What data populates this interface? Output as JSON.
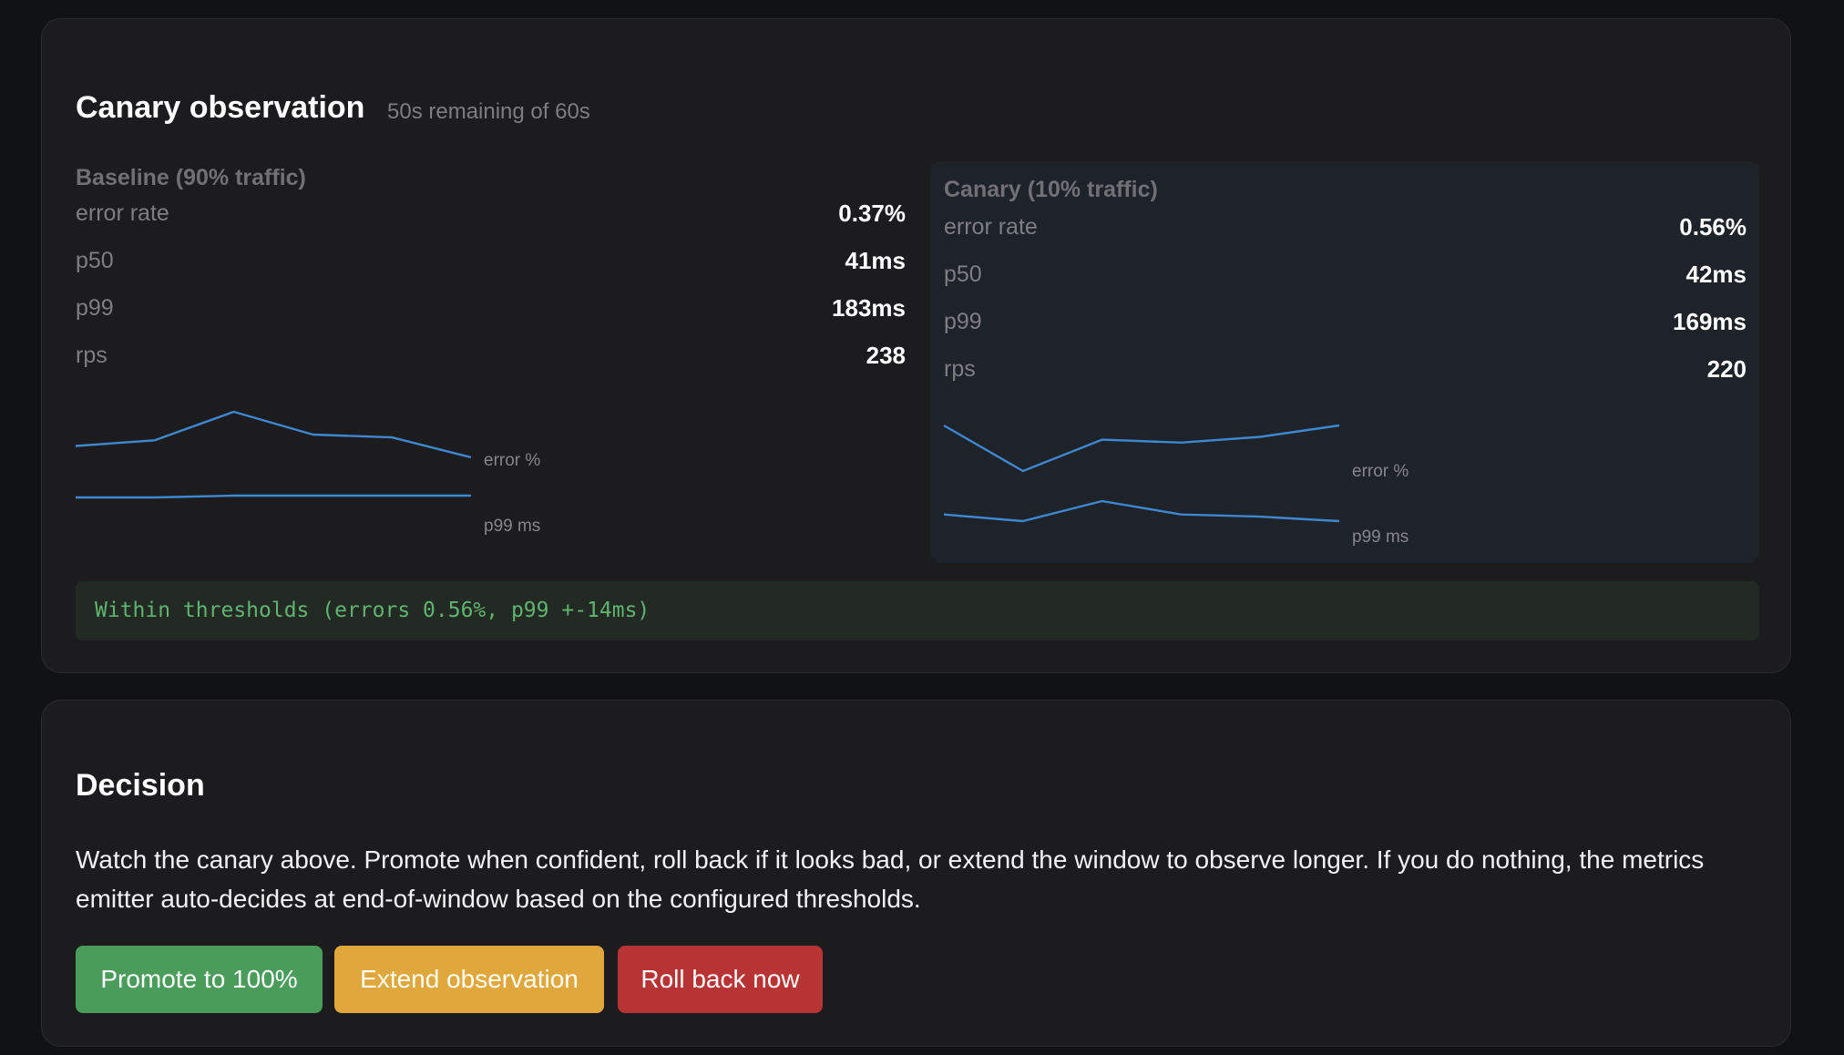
{
  "observation": {
    "title": "Canary observation",
    "subtitle": "50s remaining of 60s",
    "baseline": {
      "title": "Baseline (90% traffic)",
      "metrics": [
        {
          "label": "error rate",
          "value": "0.37%"
        },
        {
          "label": "p50",
          "value": "41ms"
        },
        {
          "label": "p99",
          "value": "183ms"
        },
        {
          "label": "rps",
          "value": "238"
        }
      ],
      "sparklines": {
        "error_label": "error %",
        "p99_label": "p99 ms",
        "error_series": [
          0.35,
          0.36,
          0.41,
          0.37,
          0.365,
          0.33
        ],
        "p99_series": [
          182,
          182,
          183,
          183,
          183,
          183
        ]
      }
    },
    "canary": {
      "title": "Canary (10% traffic)",
      "metrics": [
        {
          "label": "error rate",
          "value": "0.56%"
        },
        {
          "label": "p50",
          "value": "42ms"
        },
        {
          "label": "p99",
          "value": "169ms"
        },
        {
          "label": "rps",
          "value": "220"
        }
      ],
      "sparklines": {
        "error_label": "error %",
        "p99_label": "p99 ms",
        "error_series": [
          0.56,
          0.48,
          0.535,
          0.53,
          0.54,
          0.56
        ],
        "p99_series": [
          170,
          167,
          176,
          170,
          169,
          167
        ]
      }
    },
    "status": "Within thresholds (errors 0.56%, p99 +-14ms)",
    "colors": {
      "sparkline": "#3f87cf",
      "status_text": "#5fb46f",
      "status_bg": "#232a24"
    }
  },
  "decision": {
    "title": "Decision",
    "description": "Watch the canary above. Promote when confident, roll back if it looks bad, or extend the window to observe longer. If you do nothing, the metrics emitter auto-decides at end-of-window based on the configured thresholds.",
    "buttons": {
      "promote": {
        "label": "Promote to 100%",
        "color": "#4a9c5a"
      },
      "extend": {
        "label": "Extend observation",
        "color": "#e0a83c"
      },
      "rollback": {
        "label": "Roll back now",
        "color": "#b83333"
      }
    }
  }
}
